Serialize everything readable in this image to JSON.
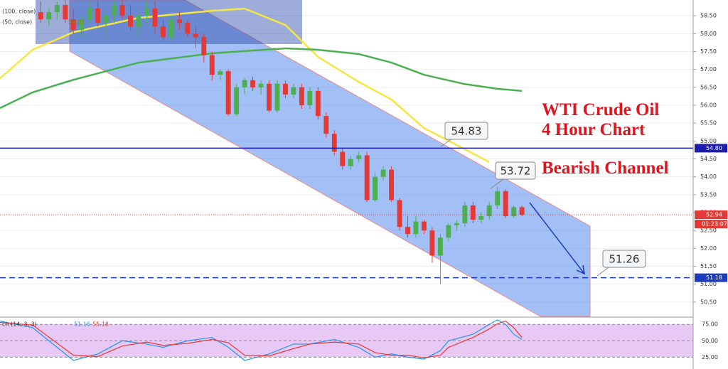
{
  "chart_data": [
    {
      "type": "candlestick",
      "annotations": [
        "WTI Crude Oil",
        "4 Hour Chart",
        "Bearish Channel"
      ],
      "callouts": [
        54.83,
        53.72,
        51.26
      ],
      "xlim": [
        0,
        85
      ],
      "ylim": [
        50.1,
        58.94
      ],
      "yticks": [
        {
          "value": 50.5,
          "label": "50.50"
        },
        {
          "value": 51,
          "label": "51.00"
        },
        {
          "value": 51.5,
          "label": "51.50"
        },
        {
          "value": 52,
          "label": "52.00"
        },
        {
          "value": 52.5,
          "label": "52.50"
        },
        {
          "value": 53,
          "label": "53.00"
        },
        {
          "value": 53.5,
          "label": "53.50"
        },
        {
          "value": 54,
          "label": "54.00"
        },
        {
          "value": 54.5,
          "label": "54.50"
        },
        {
          "value": 55,
          "label": "55.00"
        },
        {
          "value": 55.5,
          "label": "55.50"
        },
        {
          "value": 56,
          "label": "56.00"
        },
        {
          "value": 56.5,
          "label": "56.50"
        },
        {
          "value": 57,
          "label": "57.00"
        },
        {
          "value": 57.5,
          "label": "57.50"
        },
        {
          "value": 58,
          "label": "58.00"
        },
        {
          "value": 58.5,
          "label": "58.50"
        }
      ],
      "grid": true,
      "up_color": "#4caf50",
      "down_color": "#e53935",
      "x": [
        5,
        6,
        7,
        8,
        9,
        10,
        11,
        12,
        13,
        14,
        15,
        16,
        17,
        18,
        19,
        20,
        21,
        22,
        23,
        24,
        25,
        26,
        27,
        28,
        29,
        30,
        31,
        32,
        33,
        34,
        35,
        36,
        37,
        38,
        39,
        40,
        41,
        42,
        43,
        44,
        45,
        46,
        47,
        48,
        49,
        50,
        51,
        52,
        53,
        54,
        55,
        56,
        57,
        58,
        59,
        60,
        61,
        62,
        63,
        64
      ],
      "ohlc": [
        [
          58.6,
          58.9,
          58.3,
          58.4
        ],
        [
          58.4,
          58.7,
          58.2,
          58.6
        ],
        [
          58.6,
          58.9,
          58.4,
          58.8
        ],
        [
          58.8,
          58.95,
          58.3,
          58.4
        ],
        [
          58.4,
          58.7,
          58.0,
          58.1
        ],
        [
          58.1,
          58.5,
          57.9,
          58.4
        ],
        [
          58.4,
          58.9,
          58.3,
          58.7
        ],
        [
          58.7,
          58.9,
          58.2,
          58.3
        ],
        [
          58.3,
          58.6,
          57.9,
          58.5
        ],
        [
          58.5,
          58.9,
          58.3,
          58.8
        ],
        [
          58.8,
          58.95,
          58.4,
          58.5
        ],
        [
          58.5,
          58.8,
          58.1,
          58.2
        ],
        [
          58.2,
          58.6,
          57.9,
          58.5
        ],
        [
          58.5,
          58.9,
          58.3,
          58.7
        ],
        [
          58.7,
          58.9,
          58.0,
          58.2
        ],
        [
          58.2,
          58.4,
          57.8,
          57.9
        ],
        [
          57.9,
          58.5,
          57.8,
          58.4
        ],
        [
          58.4,
          58.6,
          58.1,
          58.3
        ],
        [
          58.3,
          58.4,
          57.9,
          58.0
        ],
        [
          58.0,
          58.2,
          57.6,
          57.9
        ],
        [
          57.9,
          58.0,
          57.2,
          57.4
        ],
        [
          57.4,
          57.5,
          56.7,
          56.85
        ],
        [
          56.85,
          57.0,
          56.7,
          56.95
        ],
        [
          56.95,
          57.0,
          55.7,
          55.75
        ],
        [
          55.75,
          56.6,
          55.7,
          56.5
        ],
        [
          56.5,
          56.75,
          56.3,
          56.7
        ],
        [
          56.7,
          56.8,
          56.4,
          56.5
        ],
        [
          56.5,
          56.7,
          56.3,
          56.6
        ],
        [
          56.6,
          56.7,
          55.8,
          55.85
        ],
        [
          55.85,
          56.7,
          55.8,
          56.6
        ],
        [
          56.6,
          56.7,
          56.2,
          56.3
        ],
        [
          56.3,
          56.6,
          56.2,
          56.5
        ],
        [
          56.5,
          56.6,
          55.9,
          56.0
        ],
        [
          56.0,
          56.5,
          55.9,
          56.4
        ],
        [
          56.4,
          56.5,
          55.6,
          55.7
        ],
        [
          55.7,
          55.8,
          55.1,
          55.2
        ],
        [
          55.2,
          55.3,
          54.6,
          54.7
        ],
        [
          54.7,
          54.8,
          54.2,
          54.3
        ],
        [
          54.3,
          54.6,
          54.2,
          54.5
        ],
        [
          54.5,
          54.7,
          54.4,
          54.6
        ],
        [
          54.6,
          54.7,
          53.3,
          53.35
        ],
        [
          53.35,
          54.1,
          53.3,
          54.0
        ],
        [
          54.0,
          54.3,
          53.9,
          54.2
        ],
        [
          54.2,
          54.3,
          53.3,
          53.35
        ],
        [
          53.35,
          53.4,
          52.5,
          52.6
        ],
        [
          52.6,
          52.9,
          52.3,
          52.4
        ],
        [
          52.4,
          52.9,
          52.3,
          52.75
        ],
        [
          52.75,
          52.8,
          52.4,
          52.5
        ],
        [
          52.5,
          52.6,
          51.6,
          51.8
        ],
        [
          51.8,
          52.4,
          51.0,
          52.3
        ],
        [
          52.3,
          52.7,
          52.2,
          52.65
        ],
        [
          52.65,
          52.8,
          52.5,
          52.7
        ],
        [
          52.7,
          53.3,
          52.6,
          53.2
        ],
        [
          53.2,
          53.3,
          52.7,
          52.8
        ],
        [
          52.8,
          53.0,
          52.7,
          52.9
        ],
        [
          52.9,
          53.3,
          52.8,
          53.2
        ],
        [
          53.2,
          53.72,
          53.1,
          53.6
        ],
        [
          53.6,
          53.65,
          52.85,
          52.9
        ],
        [
          52.9,
          53.2,
          52.85,
          53.15
        ],
        [
          53.15,
          53.2,
          52.9,
          52.94
        ]
      ],
      "series": [
        {
          "name": "(50, close)",
          "color": "#f5e642",
          "last": 54.07,
          "x": [
            0,
            4,
            9,
            17,
            26,
            30,
            35,
            39,
            44,
            48,
            52,
            57,
            60
          ],
          "values": [
            56.75,
            57.55,
            58.04,
            58.44,
            58.64,
            58.7,
            58.24,
            57.35,
            56.65,
            56.16,
            55.36,
            54.77,
            54.41
          ]
        },
        {
          "name": "(100, close)",
          "color": "#4caf50",
          "x": [
            0,
            4,
            9,
            17,
            26,
            35,
            39,
            44,
            48,
            52,
            57,
            61,
            64
          ],
          "values": [
            55.92,
            56.36,
            56.71,
            57.19,
            57.45,
            57.59,
            57.55,
            57.43,
            57.19,
            56.85,
            56.59,
            56.46,
            56.4
          ]
        }
      ],
      "hlines": [
        {
          "value": 54.8,
          "label": "54.80",
          "color": "#1c1cb0",
          "style": "solid"
        },
        {
          "value": 52.94,
          "label": "52.94",
          "color": "#e53935",
          "style": "dotted"
        },
        {
          "value": 51.18,
          "label": "51.18",
          "color": "#1c3cc0",
          "style": "dashed"
        }
      ],
      "countdown": "01:23:07"
    },
    {
      "type": "line",
      "label": "ch (14, 3, 3)",
      "xlim": [
        0,
        85
      ],
      "ylim": [
        7,
        85
      ],
      "yticks": [
        {
          "value": 75,
          "label": "75.00"
        },
        {
          "value": 50,
          "label": "50.00"
        },
        {
          "value": 25,
          "label": "25.00"
        }
      ],
      "series": [
        {
          "color": "#2196f3",
          "last": 51.16,
          "x": [
            0,
            4,
            9,
            12,
            15,
            18,
            20,
            23,
            26,
            28,
            30,
            33,
            36,
            38,
            41,
            44,
            46,
            48,
            50,
            52,
            54,
            55,
            58,
            60,
            61,
            62,
            63,
            64
          ],
          "values": [
            80,
            70,
            20,
            30,
            50,
            45,
            40,
            50,
            55,
            40,
            20,
            30,
            45,
            45,
            52,
            40,
            25,
            30,
            25,
            22,
            35,
            50,
            60,
            75,
            82,
            75,
            60,
            52
          ]
        },
        {
          "color": "#e53935",
          "last": 55.18,
          "x": [
            0,
            4,
            9,
            12,
            15,
            18,
            20,
            23,
            26,
            28,
            30,
            33,
            36,
            38,
            41,
            44,
            46,
            48,
            50,
            52,
            54,
            55,
            58,
            60,
            61,
            62,
            63,
            64
          ],
          "values": [
            78,
            74,
            28,
            26,
            42,
            48,
            43,
            46,
            52,
            47,
            28,
            27,
            38,
            45,
            48,
            45,
            32,
            28,
            28,
            24,
            28,
            40,
            55,
            68,
            76,
            80,
            70,
            55
          ]
        }
      ]
    }
  ]
}
